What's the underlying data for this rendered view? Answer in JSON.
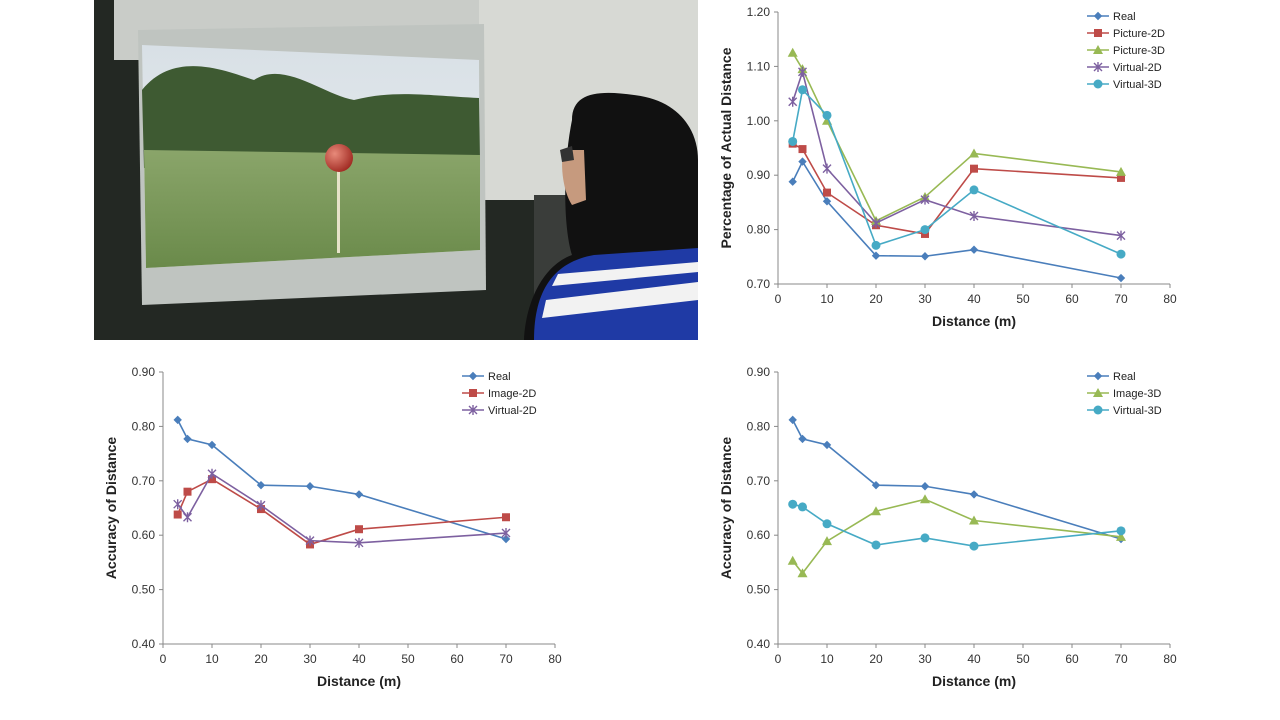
{
  "chart_data": [
    {
      "type": "line",
      "xlabel": "Distance (m)",
      "ylabel": "Percentage of Actual Distance",
      "xlim": [
        0,
        80
      ],
      "ylim": [
        0.7,
        1.2
      ],
      "xticks": [
        "0",
        "10",
        "20",
        "30",
        "40",
        "50",
        "60",
        "70",
        "80"
      ],
      "yticks": [
        "0.70",
        "0.80",
        "0.90",
        "1.00",
        "1.10",
        "1.20"
      ],
      "grid": false,
      "legend": "top-right",
      "x": [
        3,
        5,
        10,
        20,
        30,
        40,
        70
      ],
      "series": [
        {
          "name": "Real",
          "color": "#4a7ebb",
          "marker": "diamond",
          "values": [
            0.888,
            0.925,
            0.852,
            0.752,
            0.751,
            0.763,
            0.711
          ]
        },
        {
          "name": "Picture-2D",
          "color": "#be4b48",
          "marker": "square",
          "values": [
            0.958,
            0.948,
            0.868,
            0.808,
            0.792,
            0.912,
            0.895
          ]
        },
        {
          "name": "Picture-3D",
          "color": "#98b954",
          "marker": "triangle",
          "values": [
            1.125,
            1.095,
            1.0,
            0.816,
            0.86,
            0.94,
            0.906
          ]
        },
        {
          "name": "Virtual-2D",
          "color": "#7d60a0",
          "marker": "star",
          "values": [
            1.035,
            1.09,
            0.912,
            0.812,
            0.855,
            0.825,
            0.789
          ]
        },
        {
          "name": "Virtual-3D",
          "color": "#46aac5",
          "marker": "circle",
          "values": [
            0.962,
            1.057,
            1.01,
            0.771,
            0.8,
            0.873,
            0.755
          ]
        }
      ]
    },
    {
      "type": "line",
      "xlabel": "Distance (m)",
      "ylabel": "Accuracy of Distance",
      "xlim": [
        0,
        80
      ],
      "ylim": [
        0.4,
        0.9
      ],
      "xticks": [
        "0",
        "10",
        "20",
        "30",
        "40",
        "50",
        "60",
        "70",
        "80"
      ],
      "yticks": [
        "0.40",
        "0.50",
        "0.60",
        "0.70",
        "0.80",
        "0.90"
      ],
      "grid": false,
      "legend": "top-right",
      "x": [
        3,
        5,
        10,
        20,
        30,
        40,
        70
      ],
      "series": [
        {
          "name": "Real",
          "color": "#4a7ebb",
          "marker": "diamond",
          "values": [
            0.812,
            0.777,
            0.766,
            0.692,
            0.69,
            0.675,
            0.593
          ]
        },
        {
          "name": "Image-2D",
          "color": "#be4b48",
          "marker": "square",
          "values": [
            0.638,
            0.68,
            0.703,
            0.648,
            0.583,
            0.611,
            0.633
          ]
        },
        {
          "name": "Virtual-2D",
          "color": "#7d60a0",
          "marker": "star",
          "values": [
            0.657,
            0.633,
            0.713,
            0.655,
            0.59,
            0.586,
            0.604
          ]
        }
      ]
    },
    {
      "type": "line",
      "xlabel": "Distance (m)",
      "ylabel": "Accuracy of Distance",
      "xlim": [
        0,
        80
      ],
      "ylim": [
        0.4,
        0.9
      ],
      "xticks": [
        "0",
        "10",
        "20",
        "30",
        "40",
        "50",
        "60",
        "70",
        "80"
      ],
      "yticks": [
        "0.40",
        "0.50",
        "0.60",
        "0.70",
        "0.80",
        "0.90"
      ],
      "grid": false,
      "legend": "top-right",
      "x": [
        3,
        5,
        10,
        20,
        30,
        40,
        70
      ],
      "series": [
        {
          "name": "Real",
          "color": "#4a7ebb",
          "marker": "diamond",
          "values": [
            0.812,
            0.777,
            0.766,
            0.692,
            0.69,
            0.675,
            0.593
          ]
        },
        {
          "name": "Image-3D",
          "color": "#98b954",
          "marker": "triangle",
          "values": [
            0.553,
            0.53,
            0.589,
            0.644,
            0.666,
            0.627,
            0.597
          ]
        },
        {
          "name": "Virtual-3D",
          "color": "#46aac5",
          "marker": "circle",
          "values": [
            0.657,
            0.652,
            0.621,
            0.582,
            0.595,
            0.58,
            0.608
          ]
        }
      ]
    }
  ]
}
